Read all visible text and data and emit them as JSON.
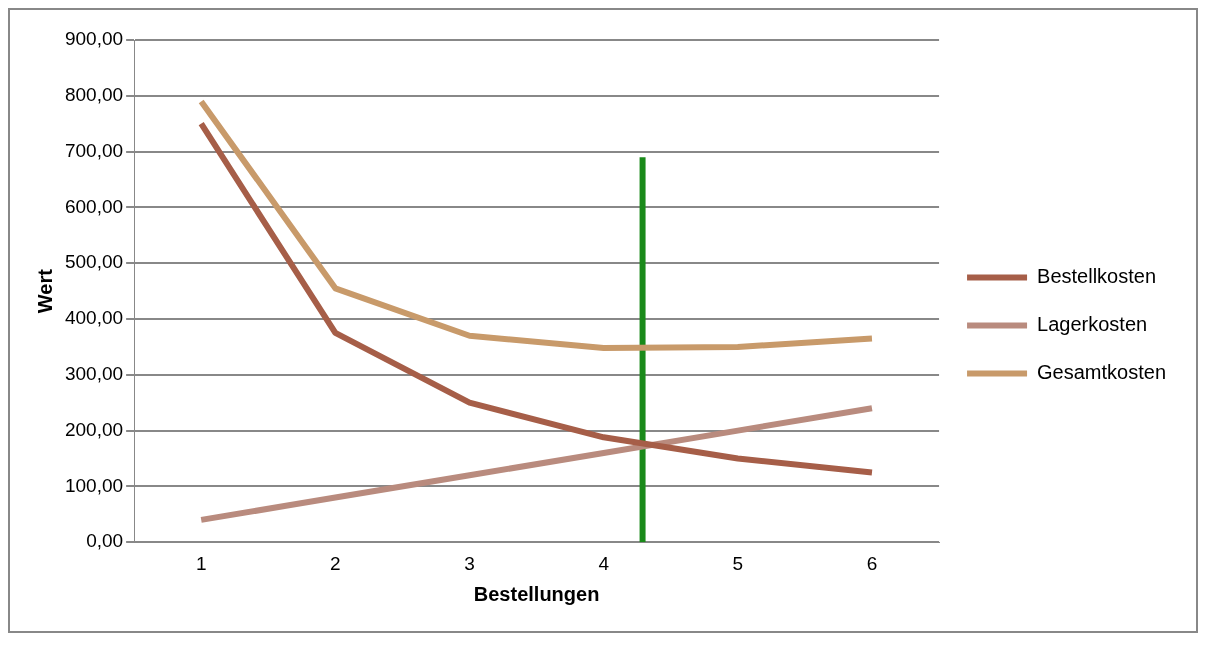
{
  "chart_data": {
    "type": "line",
    "xlabel": "Bestellungen",
    "ylabel": "Wert",
    "x": [
      1,
      2,
      3,
      4,
      5,
      6
    ],
    "xlim": [
      0.5,
      6.5
    ],
    "xticks": [
      1,
      2,
      3,
      4,
      5,
      6
    ],
    "ylim": [
      0,
      900
    ],
    "yticks": [
      {
        "value": 0,
        "label": "0,00"
      },
      {
        "value": 100,
        "label": "100,00"
      },
      {
        "value": 200,
        "label": "200,00"
      },
      {
        "value": 300,
        "label": "300,00"
      },
      {
        "value": 400,
        "label": "400,00"
      },
      {
        "value": 500,
        "label": "500,00"
      },
      {
        "value": 600,
        "label": "600,00"
      },
      {
        "value": 700,
        "label": "700,00"
      },
      {
        "value": 800,
        "label": "800,00"
      },
      {
        "value": 900,
        "label": "900,00"
      }
    ],
    "grid": "y",
    "legend": "right",
    "marker": "none",
    "series": [
      {
        "name": "Bestellkosten",
        "color": "#a65e48",
        "values": [
          750,
          375,
          250,
          188,
          150,
          125
        ]
      },
      {
        "name": "Lagerkosten",
        "color": "#b98b7e",
        "values": [
          40,
          80,
          120,
          160,
          200,
          240
        ]
      },
      {
        "name": "Gesamtkosten",
        "color": "#c89a6a",
        "values": [
          790,
          455,
          370,
          348,
          350,
          365
        ]
      },
      {
        "type": "line",
        "color": "#1a8a1a",
        "x": [
          4.29,
          4.29
        ],
        "values": [
          0,
          690
        ]
      }
    ]
  }
}
